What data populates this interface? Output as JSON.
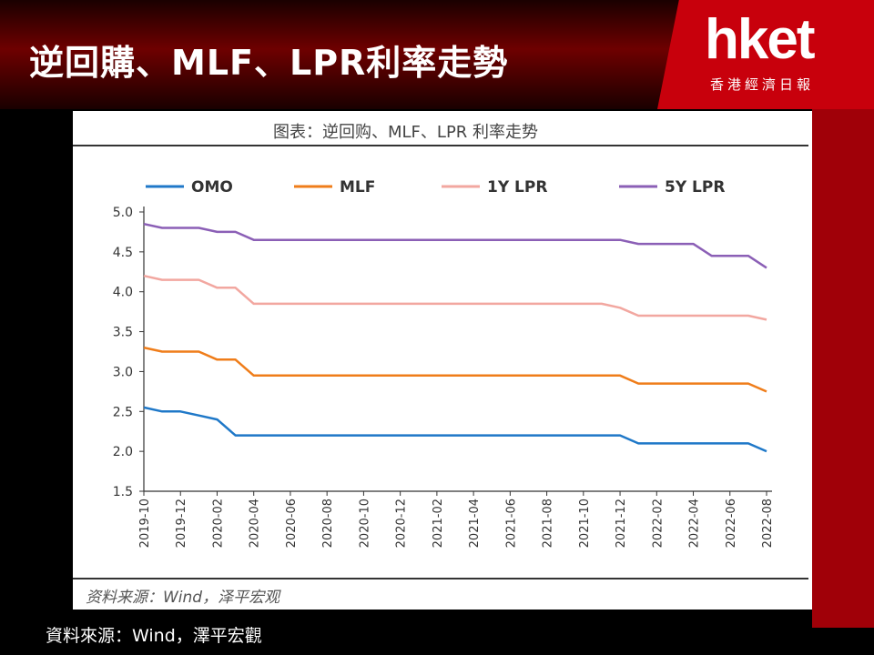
{
  "header": {
    "title": "逆回購、MLF、LPR利率走勢"
  },
  "logo": {
    "brand": "hket",
    "subtitle": "香港經濟日報",
    "color": "#c8000c"
  },
  "footer": {
    "source": "資料來源：Wind，澤平宏觀"
  },
  "chart_data": {
    "type": "line",
    "title": "图表：逆回购、MLF、LPR 利率走势",
    "note": "资料来源：Wind，泽平宏观",
    "xlabel": "",
    "ylabel": "",
    "ylim": [
      1.5,
      5.0
    ],
    "yticks": [
      "1.5",
      "2.0",
      "2.5",
      "3.0",
      "3.5",
      "4.0",
      "4.5",
      "5.0"
    ],
    "xticks": [
      "2019-10",
      "2019-12",
      "2020-02",
      "2020-04",
      "2020-06",
      "2020-08",
      "2020-10",
      "2020-12",
      "2021-02",
      "2021-04",
      "2021-06",
      "2021-08",
      "2021-10",
      "2021-12",
      "2022-02",
      "2022-04",
      "2022-06",
      "2022-08"
    ],
    "xrange": [
      "2019-10",
      "2022-08"
    ],
    "legend_position": "top",
    "grid": false,
    "series": [
      {
        "name": "OMO",
        "color": "#1f78c8",
        "points": [
          [
            "2019-10",
            2.55
          ],
          [
            "2019-11",
            2.5
          ],
          [
            "2019-12",
            2.5
          ],
          [
            "2020-01",
            2.45
          ],
          [
            "2020-02",
            2.4
          ],
          [
            "2020-03",
            2.2
          ],
          [
            "2020-04",
            2.2
          ],
          [
            "2021-12",
            2.2
          ],
          [
            "2022-01",
            2.1
          ],
          [
            "2022-07",
            2.1
          ],
          [
            "2022-08",
            2.0
          ]
        ]
      },
      {
        "name": "MLF",
        "color": "#ef7d1a",
        "points": [
          [
            "2019-10",
            3.3
          ],
          [
            "2019-11",
            3.25
          ],
          [
            "2019-12",
            3.25
          ],
          [
            "2020-01",
            3.25
          ],
          [
            "2020-02",
            3.15
          ],
          [
            "2020-03",
            3.15
          ],
          [
            "2020-04",
            2.95
          ],
          [
            "2021-12",
            2.95
          ],
          [
            "2022-01",
            2.85
          ],
          [
            "2022-07",
            2.85
          ],
          [
            "2022-08",
            2.75
          ]
        ]
      },
      {
        "name": "1Y LPR",
        "color": "#f2a7a0",
        "points": [
          [
            "2019-10",
            4.2
          ],
          [
            "2019-11",
            4.15
          ],
          [
            "2019-12",
            4.15
          ],
          [
            "2020-01",
            4.15
          ],
          [
            "2020-02",
            4.05
          ],
          [
            "2020-03",
            4.05
          ],
          [
            "2020-04",
            3.85
          ],
          [
            "2021-11",
            3.85
          ],
          [
            "2021-12",
            3.8
          ],
          [
            "2022-01",
            3.7
          ],
          [
            "2022-07",
            3.7
          ],
          [
            "2022-08",
            3.65
          ]
        ]
      },
      {
        "name": "5Y LPR",
        "color": "#8b5fb6",
        "points": [
          [
            "2019-10",
            4.85
          ],
          [
            "2019-11",
            4.8
          ],
          [
            "2019-12",
            4.8
          ],
          [
            "2020-01",
            4.8
          ],
          [
            "2020-02",
            4.75
          ],
          [
            "2020-03",
            4.75
          ],
          [
            "2020-04",
            4.65
          ],
          [
            "2021-12",
            4.65
          ],
          [
            "2022-01",
            4.6
          ],
          [
            "2022-04",
            4.6
          ],
          [
            "2022-05",
            4.45
          ],
          [
            "2022-07",
            4.45
          ],
          [
            "2022-08",
            4.3
          ]
        ]
      }
    ]
  }
}
